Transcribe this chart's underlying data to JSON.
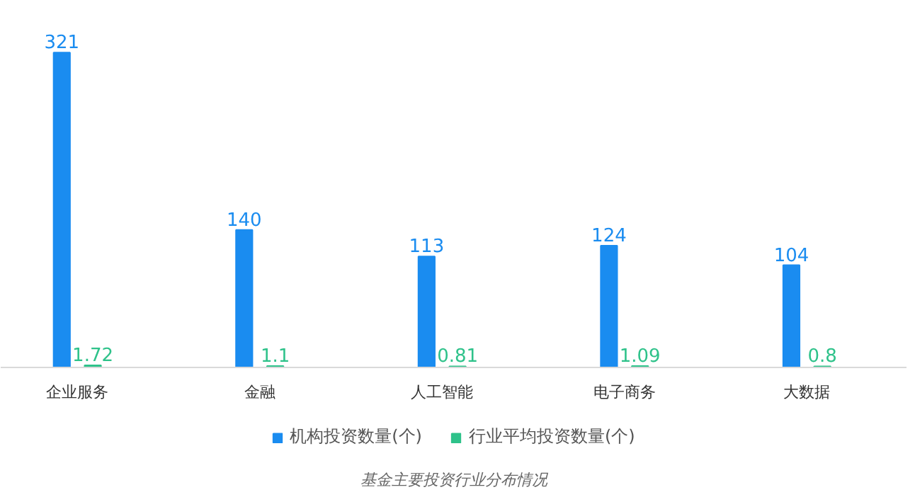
{
  "chart_data": {
    "type": "bar",
    "categories": [
      "企业服务",
      "金融",
      "人工智能",
      "电子商务",
      "大数据"
    ],
    "series": [
      {
        "name": "机构投资数量(个)",
        "color": "#1a8cf0",
        "values": [
          321,
          140,
          113,
          124,
          104
        ]
      },
      {
        "name": "行业平均投资数量(个)",
        "color": "#2ec28a",
        "values": [
          1.72,
          1.1,
          0.81,
          1.09,
          0.8
        ]
      }
    ],
    "data_labels": true,
    "legend": "bottom",
    "annotations": [
      "基金主要投资行业分布情况"
    ]
  }
}
